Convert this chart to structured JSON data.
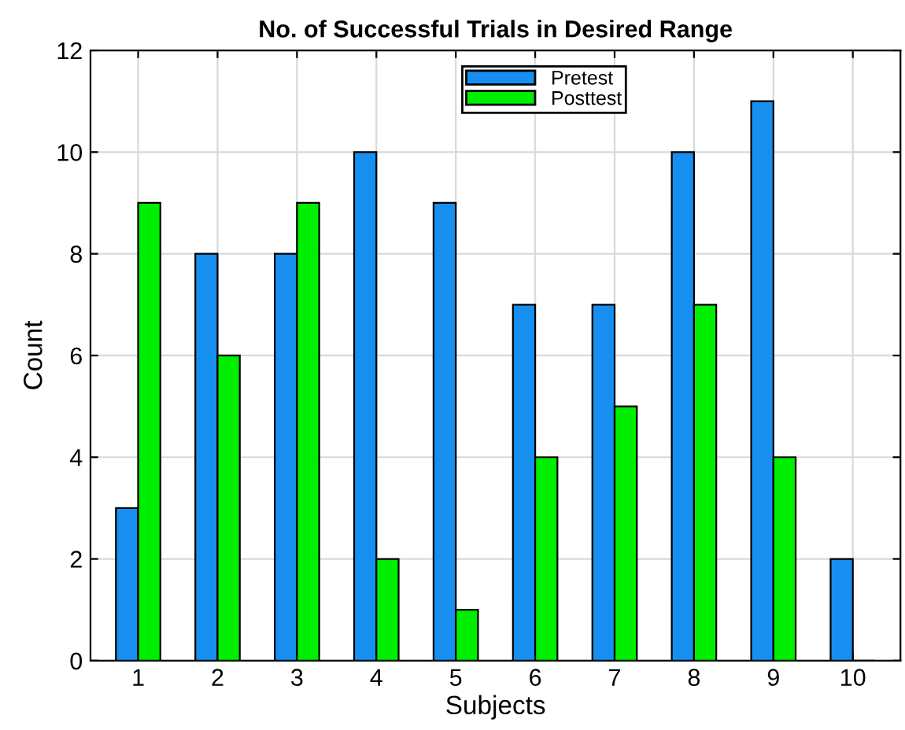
{
  "chart_data": {
    "type": "bar",
    "title": "No. of Successful Trials in Desired Range",
    "xlabel": "Subjects",
    "ylabel": "Count",
    "categories": [
      "1",
      "2",
      "3",
      "4",
      "5",
      "6",
      "7",
      "8",
      "9",
      "10"
    ],
    "series": [
      {
        "name": "Pretest",
        "color": "#168ff0",
        "values": [
          3,
          8,
          8,
          10,
          9,
          7,
          7,
          10,
          11,
          2
        ]
      },
      {
        "name": "Posttest",
        "color": "#00ee00",
        "values": [
          9,
          6,
          9,
          2,
          1,
          4,
          5,
          7,
          4,
          0
        ]
      }
    ],
    "ylim": [
      0,
      12
    ],
    "yticks": [
      0,
      2,
      4,
      6,
      8,
      10,
      12
    ],
    "grid": true,
    "legend": "top"
  }
}
